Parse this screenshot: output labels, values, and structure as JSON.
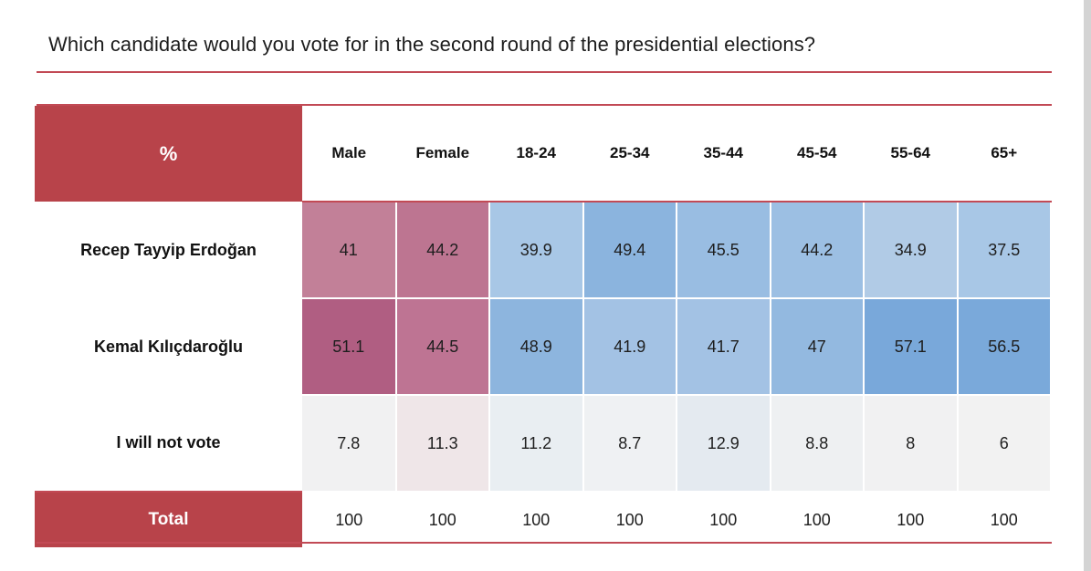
{
  "title": "Which candidate would you vote for in the second round of the presidential elections?",
  "chart_data": {
    "type": "table",
    "corner_label": "%",
    "columns": [
      "Male",
      "Female",
      "18-24",
      "25-34",
      "35-44",
      "45-54",
      "55-64",
      "65+"
    ],
    "rows": [
      {
        "label": "Recep Tayyip Erdoğan",
        "values": [
          41,
          44.2,
          39.9,
          49.4,
          45.5,
          44.2,
          34.9,
          37.5
        ],
        "colors": [
          "#c28098",
          "#bd7591",
          "#a8c7e6",
          "#8bb4de",
          "#99bde2",
          "#9cbfe3",
          "#b1cbe6",
          "#a8c7e6"
        ]
      },
      {
        "label": "Kemal Kılıçdaroğlu",
        "values": [
          51.1,
          44.5,
          48.9,
          41.9,
          41.7,
          47,
          57.1,
          56.5
        ],
        "colors": [
          "#b05e82",
          "#be7493",
          "#8db5de",
          "#a3c2e4",
          "#a3c2e4",
          "#93b9e0",
          "#79a8da",
          "#7aa9da"
        ]
      },
      {
        "label": "I will not vote",
        "values": [
          7.8,
          11.3,
          11.2,
          8.7,
          12.9,
          8.8,
          8,
          6
        ],
        "colors": [
          "#f1f1f2",
          "#efe6e8",
          "#e9eef2",
          "#eff1f3",
          "#e4eaf0",
          "#eef0f2",
          "#f1f1f2",
          "#f2f2f2"
        ]
      }
    ],
    "total": {
      "label": "Total",
      "values": [
        100,
        100,
        100,
        100,
        100,
        100,
        100,
        100
      ]
    }
  }
}
